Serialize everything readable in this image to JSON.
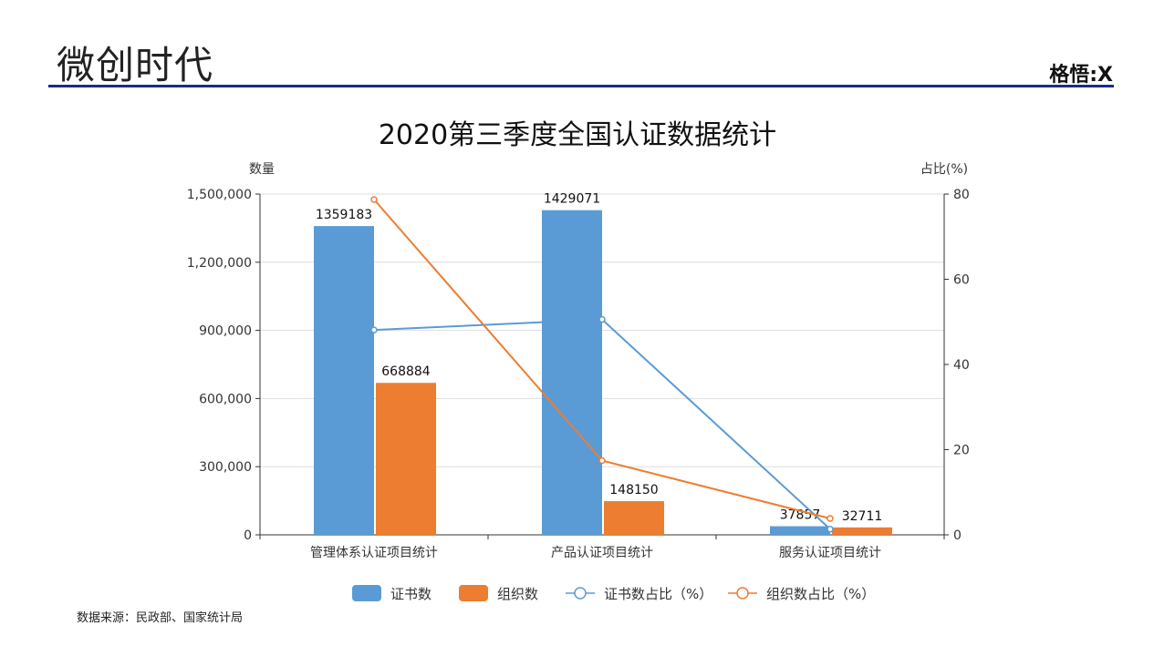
{
  "header": {
    "brand": "微创时代",
    "logo": "格悟:X"
  },
  "footer": {
    "source": "数据来源：民政部、国家统计局"
  },
  "chart_data": {
    "type": "bar",
    "title": "2020第三季度全国认证数据统计",
    "ylabel": "数量",
    "y2label": "占比(%)",
    "ylim": [
      0,
      1500000
    ],
    "y2lim": [
      0,
      80
    ],
    "yticks": [
      "0",
      "300,000",
      "600,000",
      "900,000",
      "1,200,000",
      "1,500,000"
    ],
    "y2ticks": [
      "0",
      "20",
      "40",
      "60",
      "80"
    ],
    "categories": [
      "管理体系认证项目统计",
      "产品认证项目统计",
      "服务认证项目统计"
    ],
    "series": [
      {
        "name": "证书数",
        "type": "bar",
        "axis": "left",
        "color": "#5b9bd5",
        "values": [
          1359183,
          1429071,
          37857
        ],
        "labels": [
          "1359183",
          "1429071",
          "37857"
        ]
      },
      {
        "name": "组织数",
        "type": "bar",
        "axis": "left",
        "color": "#ed7d31",
        "values": [
          668884,
          148150,
          32711
        ],
        "labels": [
          "668884",
          "148150",
          "32711"
        ]
      },
      {
        "name": "证书数占比（%）",
        "type": "line",
        "axis": "right",
        "color": "#5b9bd5",
        "values": [
          48.09,
          50.57,
          1.34
        ]
      },
      {
        "name": "组织数占比（%）",
        "type": "line",
        "axis": "right",
        "color": "#ed7d31",
        "values": [
          78.72,
          17.43,
          3.85
        ]
      }
    ],
    "grid": true,
    "legend": "bottom"
  }
}
